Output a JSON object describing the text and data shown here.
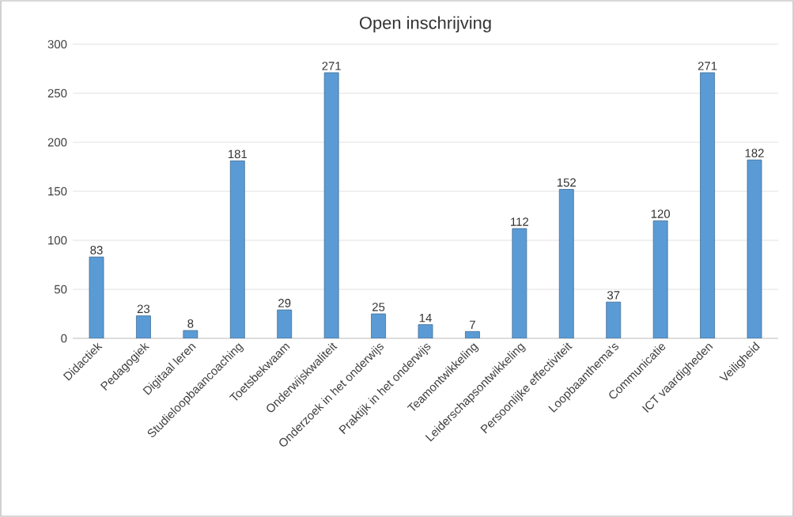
{
  "chart_data": {
    "type": "bar",
    "title": "Open inschrijving",
    "categories": [
      "Didactiek",
      "Pedagogiek",
      "Digitaal leren",
      "Studieloopbaancoaching",
      "Toetsbekwaam",
      "Onderwijskwaliteit",
      "Onderzoek in het onderwijs",
      "Praktijk in het onderwijs",
      "Teamontwikkeling",
      "Leiderschapsontwikkeling",
      "Persoonlijke effectiviteit",
      "Loopbaanthema's",
      "Communicatie",
      "ICT vaardigheden",
      "Veiligheid"
    ],
    "values": [
      83,
      23,
      8,
      181,
      29,
      271,
      25,
      14,
      7,
      112,
      152,
      37,
      120,
      271,
      182
    ],
    "color": "#5b9bd5",
    "ylim": [
      0,
      300
    ],
    "yticks": [
      0,
      50,
      100,
      150,
      200,
      250,
      300
    ],
    "grid": "y",
    "data_labels": true
  }
}
